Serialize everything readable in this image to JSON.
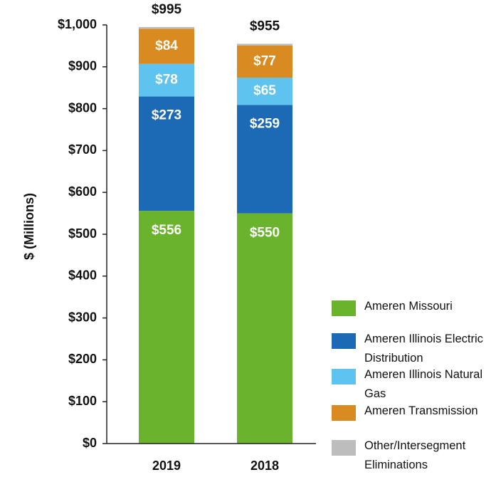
{
  "chart_data": {
    "type": "stacked-bar",
    "y_label": "$ (Millions)",
    "categories": [
      "2019",
      "2018"
    ],
    "series": [
      {
        "name": "Ameren Missouri",
        "color": "#6ab42d",
        "values": [
          556,
          550
        ],
        "value_labels": [
          "$556",
          "$550"
        ]
      },
      {
        "name": "Ameren Illinois Electric Distribution",
        "color": "#1c6ab5",
        "values": [
          273,
          259
        ],
        "value_labels": [
          "$273",
          "$259"
        ]
      },
      {
        "name": "Ameren Illinois Natural Gas",
        "color": "#5ec3ef",
        "values": [
          78,
          65
        ],
        "value_labels": [
          "$78",
          "$65"
        ]
      },
      {
        "name": "Ameren Transmission",
        "color": "#d98b22",
        "values": [
          84,
          77
        ],
        "value_labels": [
          "$84",
          "$77"
        ]
      },
      {
        "name": "Other/Intersegment Eliminations",
        "color": "#bdbdbd",
        "values": [
          4,
          4
        ]
      }
    ],
    "totals": [
      {
        "value": 995,
        "label": "$995"
      },
      {
        "value": 955,
        "label": "$955"
      }
    ],
    "ylim": [
      0,
      1000
    ],
    "yticks": [
      {
        "value": 0,
        "label": "$0"
      },
      {
        "value": 100,
        "label": "$100"
      },
      {
        "value": 200,
        "label": "$200"
      },
      {
        "value": 300,
        "label": "$300"
      },
      {
        "value": 400,
        "label": "$400"
      },
      {
        "value": 500,
        "label": "$500"
      },
      {
        "value": 600,
        "label": "$600"
      },
      {
        "value": 700,
        "label": "$700"
      },
      {
        "value": 800,
        "label": "$800"
      },
      {
        "value": 900,
        "label": "$900"
      },
      {
        "value": 1000,
        "label": "$1,000"
      }
    ]
  }
}
